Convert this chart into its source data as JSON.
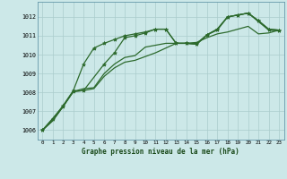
{
  "background_color": "#cce8e8",
  "grid_color": "#aacccc",
  "line_color": "#2d6a2d",
  "title": "Graphe pression niveau de la mer (hPa)",
  "xlim": [
    -0.5,
    23.5
  ],
  "ylim": [
    1005.5,
    1012.8
  ],
  "xticks": [
    0,
    1,
    2,
    3,
    4,
    5,
    6,
    7,
    8,
    9,
    10,
    11,
    12,
    13,
    14,
    15,
    16,
    17,
    18,
    19,
    20,
    21,
    22,
    23
  ],
  "yticks": [
    1006,
    1007,
    1008,
    1009,
    1010,
    1011,
    1012
  ],
  "series": [
    {
      "x": [
        0,
        1,
        2,
        3,
        4,
        5,
        6,
        7,
        8,
        9,
        10,
        11,
        12,
        13,
        14,
        15,
        16,
        17,
        18,
        19,
        20,
        21,
        22,
        23
      ],
      "y": [
        1006.0,
        1006.6,
        1007.3,
        1008.1,
        1009.5,
        1010.35,
        1010.6,
        1010.8,
        1011.0,
        1011.1,
        1011.2,
        1011.35,
        1011.35,
        1010.6,
        1010.6,
        1010.55,
        1011.05,
        1011.35,
        1012.0,
        1012.1,
        1012.2,
        1011.8,
        1011.35,
        1011.3
      ],
      "marker": "*",
      "linewidth": 0.9,
      "markersize": 3.0
    },
    {
      "x": [
        0,
        1,
        2,
        3,
        4,
        5,
        6,
        7,
        8,
        9,
        10,
        11,
        12,
        13,
        14,
        15,
        16,
        17,
        18,
        19,
        20,
        21,
        22,
        23
      ],
      "y": [
        1006.0,
        1006.5,
        1007.25,
        1008.05,
        1008.2,
        1008.25,
        1009.0,
        1009.5,
        1009.85,
        1009.95,
        1010.4,
        1010.5,
        1010.6,
        1010.6,
        1010.6,
        1010.6,
        1011.05,
        1011.3,
        1012.0,
        1012.1,
        1012.2,
        1011.75,
        1011.3,
        1011.25
      ],
      "marker": null,
      "linewidth": 0.9,
      "markersize": 0
    },
    {
      "x": [
        0,
        1,
        2,
        3,
        4,
        5,
        6,
        7,
        8,
        9,
        10,
        11,
        12,
        13,
        14,
        15,
        16,
        17,
        18,
        19,
        20,
        21,
        22,
        23
      ],
      "y": [
        1006.0,
        1006.5,
        1007.25,
        1008.05,
        1008.1,
        1008.2,
        1008.85,
        1009.3,
        1009.6,
        1009.7,
        1009.9,
        1010.1,
        1010.35,
        1010.6,
        1010.6,
        1010.65,
        1010.9,
        1011.1,
        1011.2,
        1011.35,
        1011.5,
        1011.1,
        1011.15,
        1011.3
      ],
      "marker": null,
      "linewidth": 0.9,
      "markersize": 0
    },
    {
      "x": [
        0,
        2,
        3,
        4,
        6,
        7,
        8,
        9,
        10,
        11,
        12,
        13,
        14,
        15,
        16,
        17,
        18,
        19,
        20,
        21,
        22,
        23
      ],
      "y": [
        1006.0,
        1007.25,
        1008.05,
        1008.1,
        1009.5,
        1010.1,
        1010.9,
        1011.0,
        1011.15,
        1011.35,
        1011.35,
        1010.6,
        1010.6,
        1010.55,
        1011.05,
        1011.35,
        1012.0,
        1012.1,
        1012.2,
        1011.8,
        1011.35,
        1011.3
      ],
      "marker": "*",
      "linewidth": 0.9,
      "markersize": 3.0
    }
  ]
}
